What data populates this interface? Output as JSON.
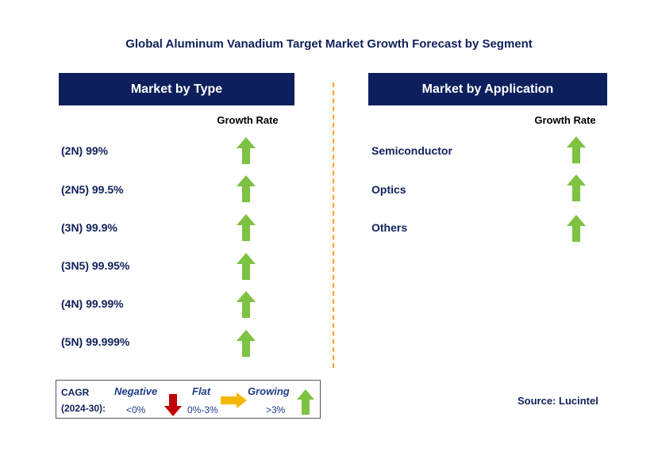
{
  "title": "Global Aluminum Vanadium Target Market Growth Forecast by Segment",
  "left_panel": {
    "header": "Market by Type",
    "column_label": "Growth Rate",
    "rows": [
      {
        "label": "(2N) 99%",
        "trend": "growing"
      },
      {
        "label": "(2N5) 99.5%",
        "trend": "growing"
      },
      {
        "label": "(3N) 99.9%",
        "trend": "growing"
      },
      {
        "label": "(3N5) 99.95%",
        "trend": "growing"
      },
      {
        "label": "(4N) 99.99%",
        "trend": "growing"
      },
      {
        "label": "(5N) 99.999%",
        "trend": "growing"
      }
    ]
  },
  "right_panel": {
    "header": "Market by Application",
    "column_label": "Growth Rate",
    "rows": [
      {
        "label": "Semiconductor",
        "trend": "growing"
      },
      {
        "label": "Optics",
        "trend": "growing"
      },
      {
        "label": "Others",
        "trend": "growing"
      }
    ]
  },
  "legend": {
    "cagr_line1": "CAGR",
    "cagr_line2": "(2024-30):",
    "negative_label": "Negative",
    "negative_range": "<0%",
    "flat_label": "Flat",
    "flat_range": "0%-3%",
    "growing_label": "Growing",
    "growing_range": ">3%"
  },
  "source": "Source: Lucintel",
  "colors": {
    "header_bg": "#0d1f5c",
    "growing_arrow": "#7dc242",
    "negative_arrow": "#c00000",
    "flat_arrow": "#f5b800",
    "divider": "#f5a623"
  }
}
